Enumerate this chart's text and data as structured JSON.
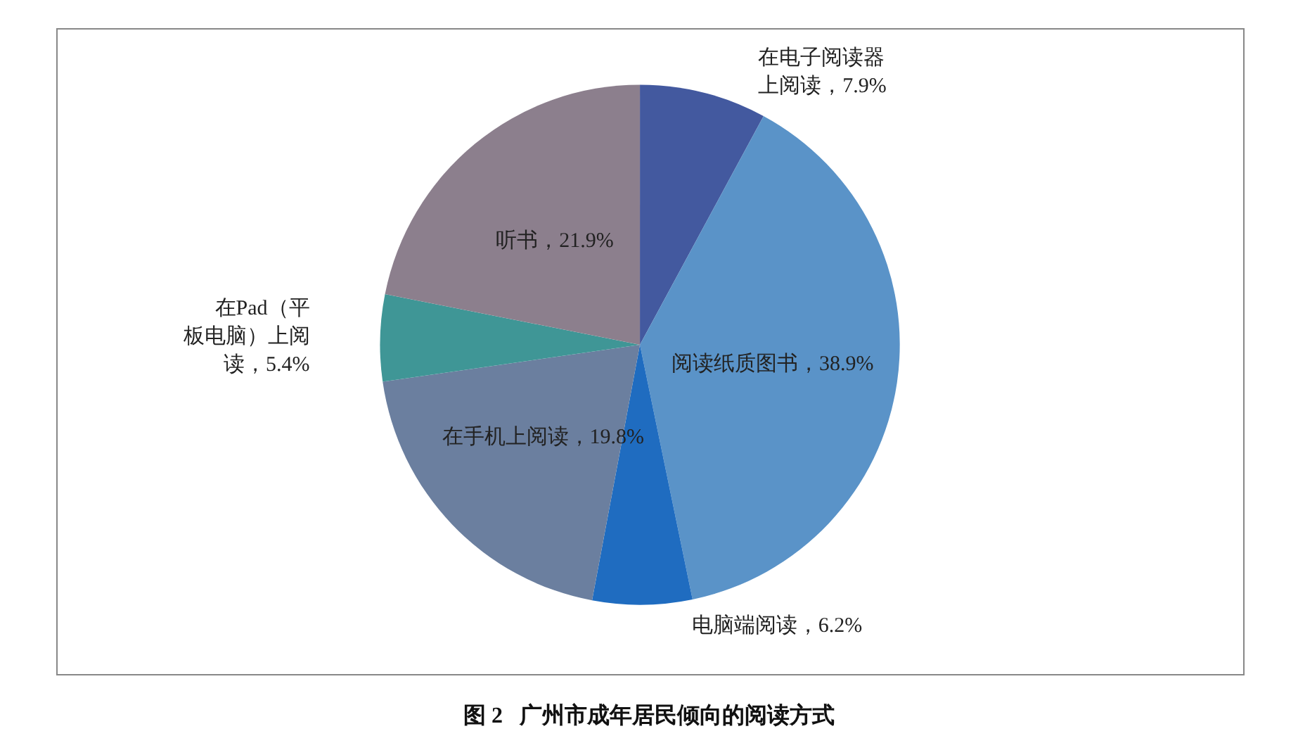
{
  "chart_data": {
    "type": "pie",
    "title": "图 2   广州市成年居民倾向的阅读方式",
    "categories": [
      "在电子阅读器上阅读",
      "阅读纸质图书",
      "电脑端阅读",
      "在手机上阅读",
      "在Pad（平板电脑）上阅读",
      "听书"
    ],
    "values": [
      7.9,
      38.9,
      6.2,
      19.8,
      5.4,
      21.9
    ],
    "value_labels": [
      "7.9%",
      "38.9%",
      "6.2%",
      "19.8%",
      "5.4%",
      "21.9%"
    ],
    "colors": [
      "#43599f",
      "#5a93c8",
      "#1f6cc0",
      "#6b7f9f",
      "#3f9696",
      "#8c7f8d"
    ],
    "legend": false
  }
}
